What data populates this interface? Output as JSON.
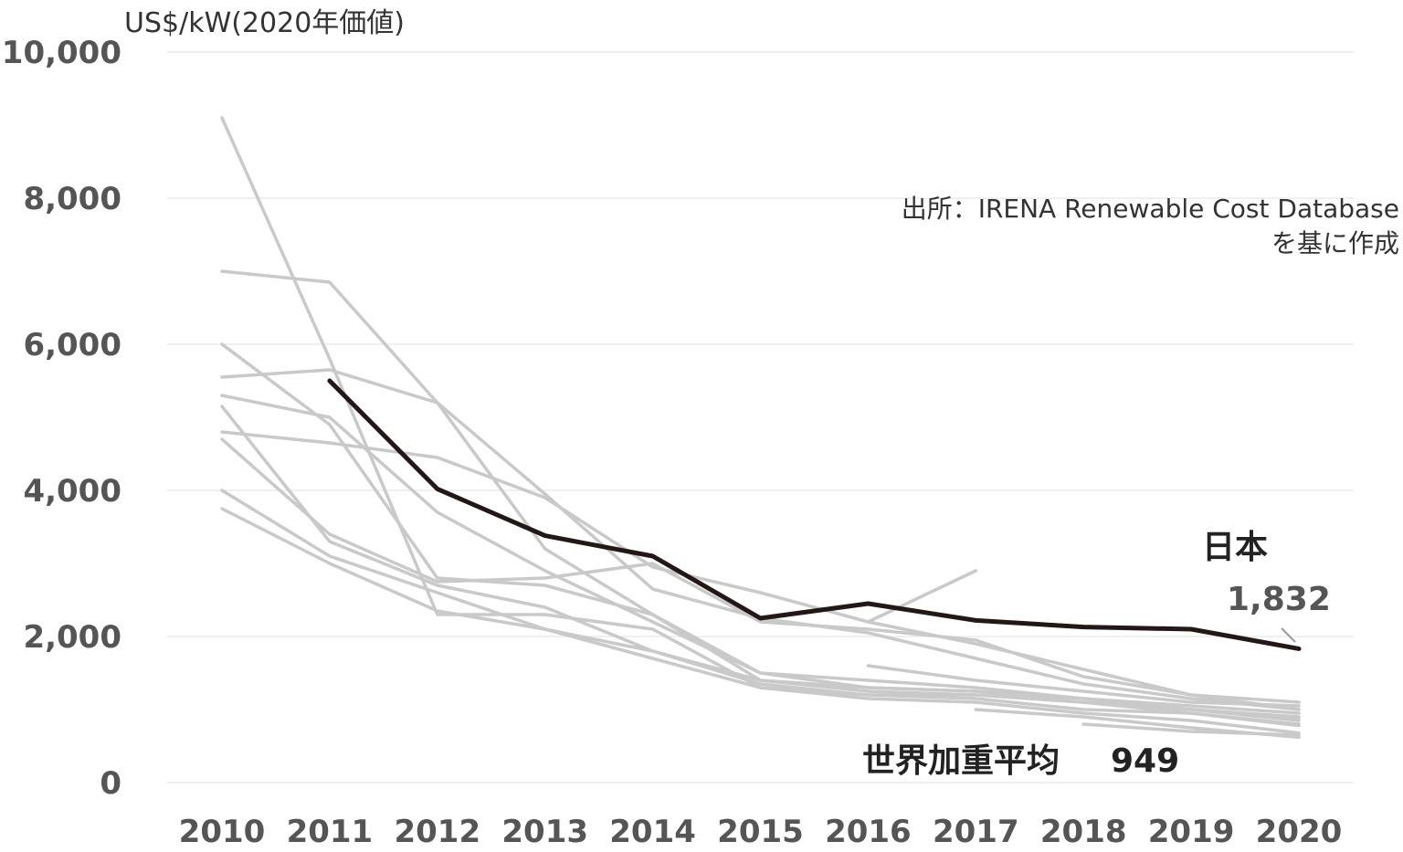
{
  "chart_data": {
    "type": "line",
    "ylabel": "US$/kW(2020年価値)",
    "ylim": [
      0,
      10000
    ],
    "yticks": [
      "0",
      "2,000",
      "4,000",
      "6,000",
      "8,000",
      "10,000"
    ],
    "ytick_values": [
      0,
      2000,
      4000,
      6000,
      8000,
      10000
    ],
    "categories": [
      "2010",
      "2011",
      "2012",
      "2013",
      "2014",
      "2015",
      "2016",
      "2017",
      "2018",
      "2019",
      "2020"
    ],
    "grid": true,
    "source": [
      "出所：IRENA Renewable Cost Database",
      "を基に作成"
    ],
    "highlight": {
      "name": "日本",
      "color": "#231815",
      "values": [
        null,
        5500,
        4020,
        3380,
        3100,
        2250,
        2450,
        2220,
        2130,
        2100,
        1832
      ],
      "end_label": "1,832"
    },
    "world_average": {
      "label": "世界加重平均",
      "value_label": "949"
    },
    "background_color": "#c9c9c9",
    "background_series": [
      [
        9100,
        5800,
        2300,
        2300,
        2100,
        1300,
        1200,
        1200,
        1100,
        1000,
        850
      ],
      [
        7000,
        6850,
        5200,
        3200,
        2300,
        1400,
        1300,
        1250,
        1100,
        1000,
        900
      ],
      [
        6000,
        4900,
        2800,
        2700,
        2300,
        1500,
        1400,
        1300,
        1150,
        1050,
        950
      ],
      [
        5550,
        5650,
        5200,
        3950,
        2650,
        2250,
        2050,
        1700,
        1350,
        1150,
        1000
      ],
      [
        5300,
        5000,
        3700,
        2900,
        2200,
        1500,
        1300,
        1250,
        1150,
        1000,
        870
      ],
      [
        5150,
        3300,
        2700,
        2400,
        1800,
        1350,
        1200,
        1150,
        1000,
        950,
        800
      ],
      [
        4800,
        4650,
        4450,
        3900,
        2950,
        2600,
        2200,
        1900,
        1550,
        1200,
        1000
      ],
      [
        4700,
        3400,
        2750,
        2800,
        3000,
        2200,
        2100,
        1950,
        1450,
        1200,
        1100
      ],
      [
        4000,
        3100,
        2600,
        2100,
        1800,
        1400,
        1250,
        1200,
        1100,
        950,
        780
      ],
      [
        3750,
        3000,
        2350,
        2100,
        1700,
        1300,
        1150,
        1100,
        950,
        850,
        680
      ],
      [
        null,
        null,
        null,
        null,
        null,
        null,
        2200,
        2900,
        null,
        null,
        null
      ],
      [
        null,
        null,
        null,
        null,
        null,
        null,
        1600,
        1400,
        1250,
        1100,
        1050
      ],
      [
        null,
        null,
        null,
        null,
        null,
        null,
        null,
        1000,
        900,
        750,
        620
      ],
      [
        null,
        null,
        null,
        null,
        null,
        null,
        null,
        null,
        800,
        700,
        650
      ]
    ]
  }
}
